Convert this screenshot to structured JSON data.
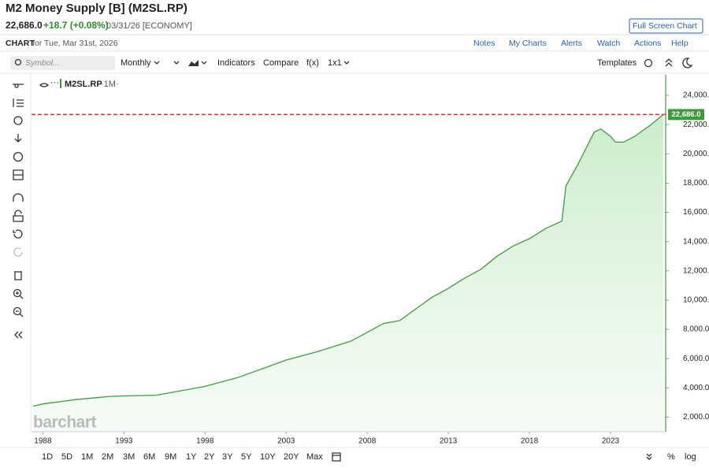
{
  "header": {
    "title": "M2 Money Supply [B] (M2SL.RP)",
    "last": "22,686.0",
    "change": "+18.7 (+0.08%)",
    "date": "03/31/26 [ECONOMY]",
    "full_screen": "Full Screen Chart"
  },
  "subheader": {
    "label": "CHART",
    "date": "for Tue, Mar 31st, 2026",
    "menu": [
      "Notes",
      "My Charts",
      "Alerts",
      "Watch",
      "Actions",
      "Help"
    ]
  },
  "toolbar": {
    "symbol_placeholder": "Symbol...",
    "period": "Monthly",
    "items": [
      "Indicators",
      "Compare",
      "f(x)",
      "1x1"
    ],
    "templates": "Templates"
  },
  "chart_data": {
    "type": "area",
    "x": [
      1987.4,
      1988,
      1990,
      1992,
      1993,
      1995,
      1996,
      1998,
      2000,
      2002,
      2003,
      2005,
      2007,
      2008,
      2009,
      2010,
      2011,
      2012,
      2013,
      2014,
      2015,
      2016,
      2017,
      2018,
      2019,
      2020.0,
      2020.25,
      2020.5,
      2021.0,
      2021.5,
      2022.0,
      2022.4,
      2023.0,
      2023.3,
      2023.8,
      2024.5,
      2025.0,
      2025.5,
      2026.25
    ],
    "series": [
      {
        "name": "M2SL.RP",
        "interval": "·1M·",
        "color": "#3f9a3f",
        "values": [
          2750,
          2900,
          3200,
          3400,
          3450,
          3500,
          3700,
          4100,
          4700,
          5500,
          5900,
          6500,
          7200,
          7800,
          8400,
          8600,
          9400,
          10200,
          10800,
          11500,
          12100,
          13000,
          13700,
          14200,
          14900,
          15400,
          17800,
          18300,
          19300,
          20400,
          21500,
          21700,
          21200,
          20800,
          20800,
          21200,
          21600,
          22000,
          22686
        ]
      }
    ],
    "xlim": [
      1987.3,
      2026.4
    ],
    "xticks": [
      1988,
      1993,
      1998,
      2003,
      2008,
      2013,
      2018,
      2023
    ],
    "ylim": [
      1000,
      25400
    ],
    "yticks": [
      {
        "value": 2000,
        "label": "2,000.0"
      },
      {
        "value": 4000,
        "label": "4,000.0"
      },
      {
        "value": 6000,
        "label": "6,000.0"
      },
      {
        "value": 8000,
        "label": "8,000.0"
      },
      {
        "value": 10000,
        "label": "10,000.0"
      },
      {
        "value": 12000,
        "label": "12,000.0"
      },
      {
        "value": 14000,
        "label": "14,000.0"
      },
      {
        "value": 16000,
        "label": "16,000.0"
      },
      {
        "value": 18000,
        "label": "18,000.0"
      },
      {
        "value": 20000,
        "label": "20,000.0"
      },
      {
        "value": 22000,
        "label": "22,000.0"
      },
      {
        "value": 24000,
        "label": "24,000.0"
      }
    ],
    "reference_line": {
      "value": 22686,
      "label": "22,686.0",
      "color": "#d32f2f"
    },
    "grid": false
  },
  "watermark": "barchart",
  "footer": {
    "ranges": [
      "1D",
      "5D",
      "1M",
      "2M",
      "3M",
      "6M",
      "9M",
      "1Y",
      "2Y",
      "3Y",
      "5Y",
      "10Y",
      "20Y",
      "Max"
    ],
    "percent": "%",
    "log": "log"
  }
}
